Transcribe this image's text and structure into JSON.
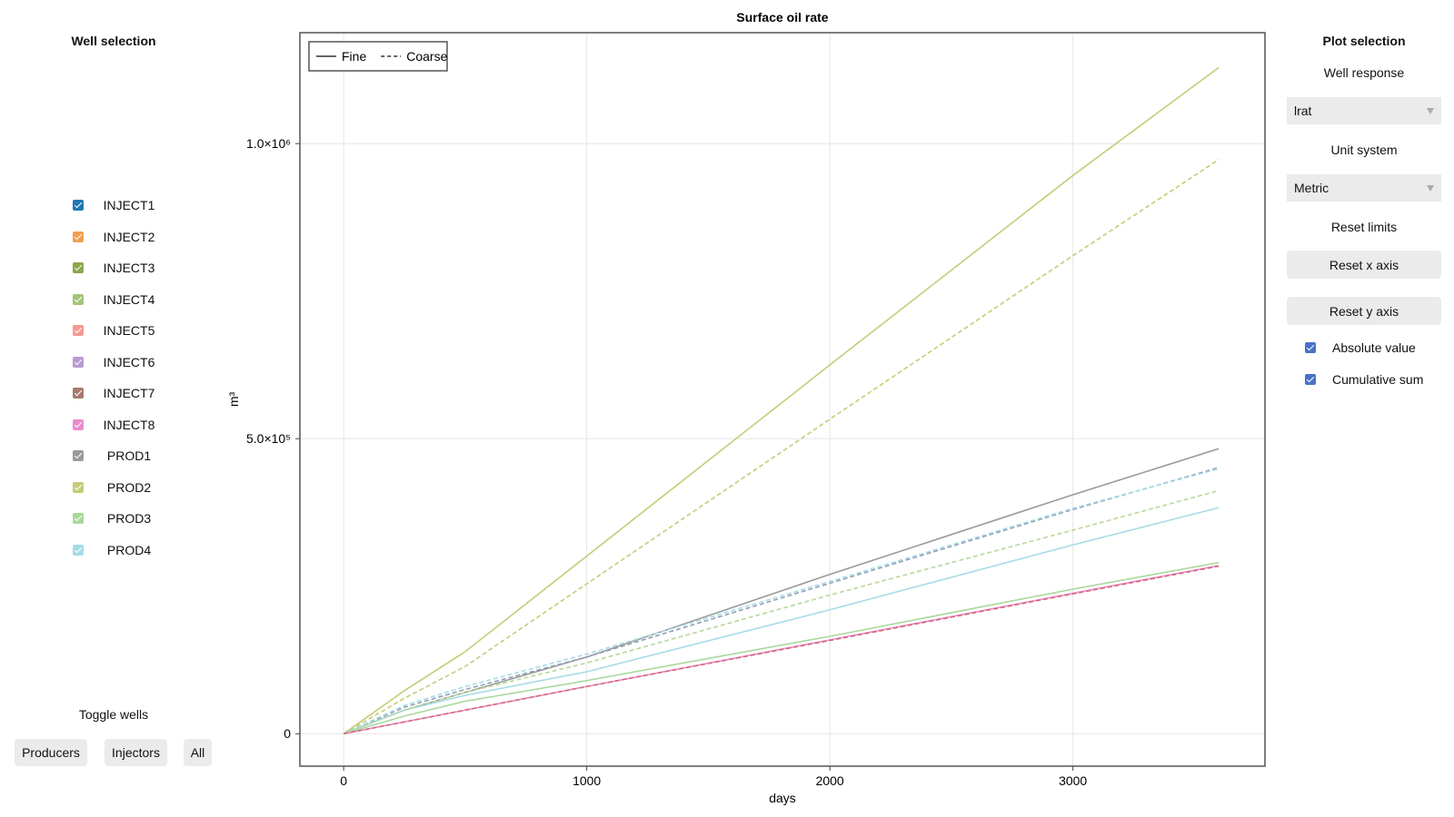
{
  "left_panel": {
    "title": "Well selection",
    "wells": [
      {
        "label": "INJECT1",
        "color": "#1f77b4",
        "checked": true
      },
      {
        "label": "INJECT2",
        "color": "#f0a050",
        "checked": true
      },
      {
        "label": "INJECT3",
        "color": "#8aa84a",
        "checked": true
      },
      {
        "label": "INJECT4",
        "color": "#a4c47a",
        "checked": true
      },
      {
        "label": "INJECT5",
        "color": "#f49a92",
        "checked": true
      },
      {
        "label": "INJECT6",
        "color": "#b79ad4",
        "checked": true
      },
      {
        "label": "INJECT7",
        "color": "#a67a70",
        "checked": true
      },
      {
        "label": "INJECT8",
        "color": "#ea8ccf",
        "checked": true
      },
      {
        "label": "PROD1",
        "color": "#9a9a9a",
        "checked": true
      },
      {
        "label": "PROD2",
        "color": "#c6cc76",
        "checked": true
      },
      {
        "label": "PROD3",
        "color": "#a8d89a",
        "checked": true
      },
      {
        "label": "PROD4",
        "color": "#a6dbe6",
        "checked": true
      }
    ],
    "toggle_title": "Toggle wells",
    "toggle_buttons": [
      "Producers",
      "Injectors",
      "All"
    ]
  },
  "right_panel": {
    "title": "Plot selection",
    "response_label": "Well response",
    "response_value": "lrat",
    "unit_label": "Unit system",
    "unit_value": "Metric",
    "reset_label": "Reset limits",
    "reset_x": "Reset x axis",
    "reset_y": "Reset y axis",
    "options": [
      {
        "label": "Absolute value",
        "checked": true
      },
      {
        "label": "Cumulative sum",
        "checked": true
      }
    ]
  },
  "chart_data": {
    "type": "line",
    "title": "Surface oil rate",
    "x_label": "days",
    "y_label": "m³",
    "x": [
      0,
      250,
      500,
      1000,
      2000,
      3000,
      3600
    ],
    "series": [
      {
        "color": "#c6cc76",
        "dashed": false,
        "values": [
          0,
          73000,
          139000,
          301000,
          625000,
          946000,
          1129000
        ]
      },
      {
        "color": "#c6cc76",
        "dashed": true,
        "values": [
          0,
          60000,
          114000,
          254000,
          533000,
          810000,
          973000
        ]
      },
      {
        "color": "#9a9a9a",
        "dashed": false,
        "values": [
          0,
          40000,
          70000,
          130000,
          270000,
          405000,
          483000
        ]
      },
      {
        "color": "#8fa0b4",
        "dashed": true,
        "values": [
          0,
          45000,
          75000,
          130000,
          255000,
          380000,
          451000
        ]
      },
      {
        "color": "#a6dbe6",
        "dashed": false,
        "values": [
          0,
          40000,
          65000,
          105000,
          210000,
          320000,
          383000
        ]
      },
      {
        "color": "#a6dbe6",
        "dashed": true,
        "values": [
          0,
          48000,
          80000,
          135000,
          258000,
          382000,
          449000
        ]
      },
      {
        "color": "#a8d89a",
        "dashed": false,
        "values": [
          0,
          30000,
          55000,
          90000,
          165000,
          245000,
          290000
        ]
      },
      {
        "color": "#b8d89a",
        "dashed": true,
        "values": [
          0,
          40000,
          70000,
          120000,
          235000,
          345000,
          412000
        ]
      },
      {
        "color": "#ea8ccf",
        "dashed": false,
        "values": [
          0,
          20000,
          40000,
          80000,
          159000,
          238000,
          285000
        ]
      },
      {
        "color": "#d4687a",
        "dashed": true,
        "values": [
          0,
          20000,
          40000,
          80000,
          158000,
          237000,
          284000
        ]
      }
    ],
    "xlim": [
      -180,
      3790
    ],
    "ylim": [
      -55000,
      1188000
    ],
    "xticks": [
      0,
      1000,
      2000,
      3000
    ],
    "yticks": [
      {
        "value": 0,
        "label": "0"
      },
      {
        "value": 500000,
        "label": "5.0×10⁵"
      },
      {
        "value": 1000000,
        "label": "1.0×10⁶"
      }
    ],
    "grid": true,
    "legend": {
      "position": "top-left",
      "entries": [
        {
          "label": "Fine",
          "dashed": false
        },
        {
          "label": "Coarse",
          "dashed": true
        }
      ]
    }
  }
}
